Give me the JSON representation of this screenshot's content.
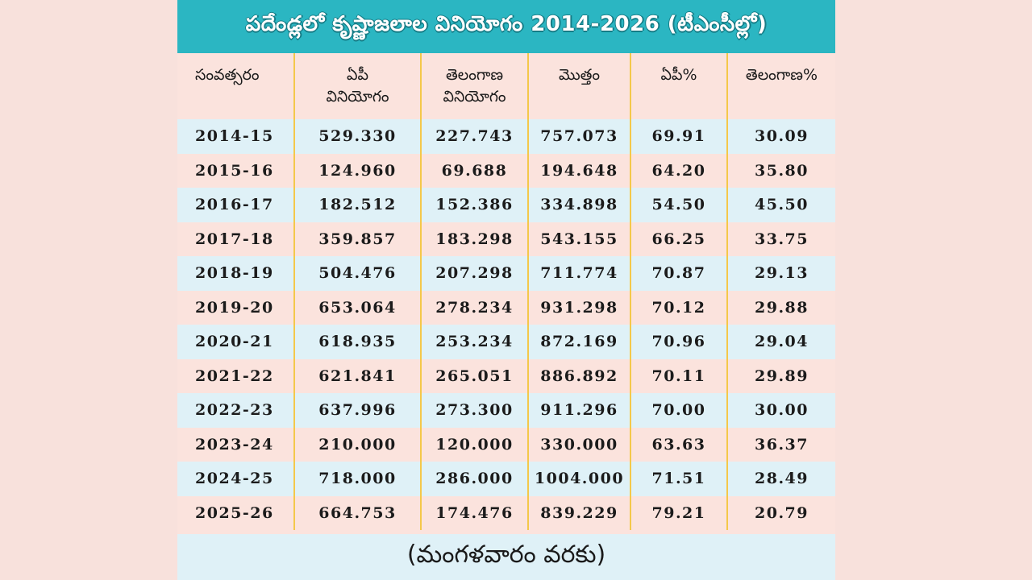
{
  "title": "పదేండ్లలో కృష్ణాజలాల వినియోగం 2014-2026 (టీఎంసీల్లో)",
  "headers": {
    "year": "సంవత్సరం",
    "ap_line1": "ఏపీ",
    "ap_line2": "వినియోగం",
    "tg_line1": "తెలంగాణ",
    "tg_line2": "వినియోగం",
    "total": "మొత్తం",
    "ap_pct": "ఏపీ%",
    "tg_pct": "తెలంగాణ%"
  },
  "rows": [
    {
      "year": "2014-15",
      "ap": "529.330",
      "tg": "227.743",
      "total": "757.073",
      "ap_pct": "69.91",
      "tg_pct": "30.09"
    },
    {
      "year": "2015-16",
      "ap": "124.960",
      "tg": "69.688",
      "total": "194.648",
      "ap_pct": "64.20",
      "tg_pct": "35.80"
    },
    {
      "year": "2016-17",
      "ap": "182.512",
      "tg": "152.386",
      "total": "334.898",
      "ap_pct": "54.50",
      "tg_pct": "45.50"
    },
    {
      "year": "2017-18",
      "ap": "359.857",
      "tg": "183.298",
      "total": "543.155",
      "ap_pct": "66.25",
      "tg_pct": "33.75"
    },
    {
      "year": "2018-19",
      "ap": "504.476",
      "tg": "207.298",
      "total": "711.774",
      "ap_pct": "70.87",
      "tg_pct": "29.13"
    },
    {
      "year": "2019-20",
      "ap": "653.064",
      "tg": "278.234",
      "total": "931.298",
      "ap_pct": "70.12",
      "tg_pct": "29.88"
    },
    {
      "year": "2020-21",
      "ap": "618.935",
      "tg": "253.234",
      "total": "872.169",
      "ap_pct": "70.96",
      "tg_pct": "29.04"
    },
    {
      "year": "2021-22",
      "ap": "621.841",
      "tg": "265.051",
      "total": "886.892",
      "ap_pct": "70.11",
      "tg_pct": "29.89"
    },
    {
      "year": "2022-23",
      "ap": "637.996",
      "tg": "273.300",
      "total": "911.296",
      "ap_pct": "70.00",
      "tg_pct": "30.00"
    },
    {
      "year": "2023-24",
      "ap": "210.000",
      "tg": "120.000",
      "total": "330.000",
      "ap_pct": "63.63",
      "tg_pct": "36.37"
    },
    {
      "year": "2024-25",
      "ap": "718.000",
      "tg": "286.000",
      "total": "1004.000",
      "ap_pct": "71.51",
      "tg_pct": "28.49"
    },
    {
      "year": "2025-26",
      "ap": "664.753",
      "tg": "174.476",
      "total": "839.229",
      "ap_pct": "79.21",
      "tg_pct": "20.79"
    }
  ],
  "footer": "(మంగళవారం వరకు)",
  "colors": {
    "title_bg": "#2bb6c2",
    "row_blue": "#dff1f7",
    "row_pink": "#fbe3dd",
    "divider": "#f4c84a"
  }
}
